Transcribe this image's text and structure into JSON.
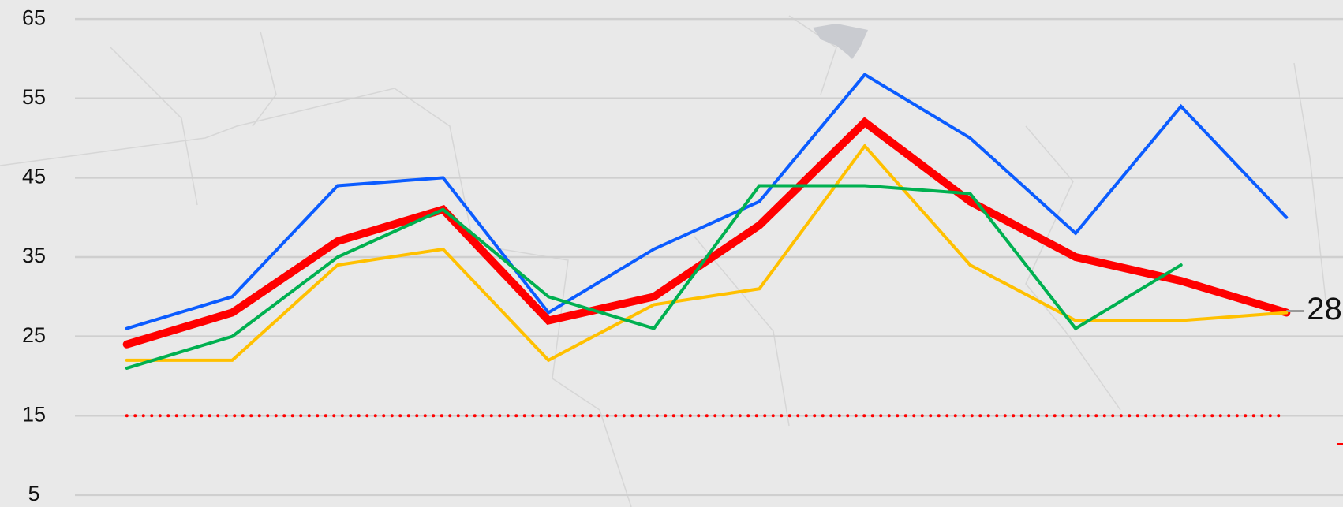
{
  "chart_data": {
    "type": "line",
    "categories": [
      null,
      null,
      null,
      null,
      null,
      null,
      null,
      null,
      null,
      null,
      null,
      null
    ],
    "series": [
      {
        "color": "#0b5cff",
        "width": 4,
        "values": [
          26,
          30,
          44,
          45,
          28,
          36,
          42,
          58,
          50,
          38,
          54,
          40
        ]
      },
      {
        "color": "#ff0000",
        "width": 10,
        "values": [
          24,
          28,
          37,
          41,
          27,
          30,
          39,
          52,
          42,
          35,
          32,
          28
        ],
        "end_label": true
      },
      {
        "color": "#ffc000",
        "width": 4,
        "values": [
          22,
          22,
          34,
          36,
          22,
          29,
          31,
          49,
          34,
          27,
          27,
          28
        ]
      },
      {
        "color": "#00b050",
        "width": 4,
        "values": [
          21,
          25,
          35,
          41,
          30,
          26,
          44,
          44,
          43,
          26,
          34,
          null
        ]
      },
      {
        "color": "#ff0000",
        "width": 4,
        "dash": "dotted",
        "values": [
          15,
          15,
          15,
          15,
          15,
          15,
          15,
          15,
          15,
          15,
          15,
          15
        ]
      }
    ],
    "ylim": [
      3.5,
      67.4
    ],
    "yticks": [
      5,
      15,
      25,
      35,
      45,
      55,
      65
    ],
    "grid": true
  }
}
